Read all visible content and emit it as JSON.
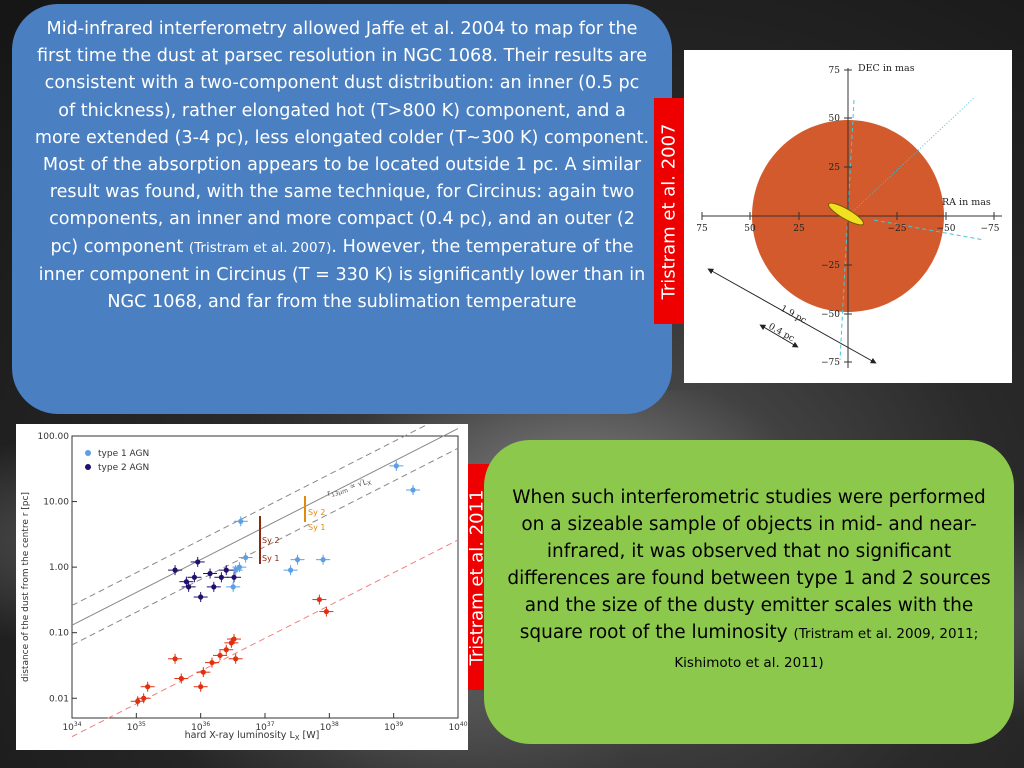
{
  "blue_box": {
    "text": "Mid-infrared interferometry allowed Jaffe et al. 2004 to map for the first time the dust at parsec resolution in NGC 1068. Their results are consistent with a two-component dust distribution: an inner (0.5 pc of thickness), rather elongated hot (T>800 K) component, and a more extended (3-4 pc), less elongated colder (T~300 K) component. Most of the absorption appears to be located outside 1 pc. A similar result was found, with the same technique, for Circinus: again two components, an inner and more compact (0.4 pc), and an outer (2 pc) component",
    "citation": "(Tristram et al. 2007)",
    "text_after": ". However, the temperature of the inner component in Circinus (T = 330 K) is significantly lower than in NGC 1068, and far from the sublimation temperature"
  },
  "green_box": {
    "text": "When such interferometric studies were performed on a sizeable sample of objects in mid- and near-infrared, it was observed that no significant differences are found between type 1 and 2 sources and the size of the dusty emitter scales with the square root of the luminosity",
    "citation": "(Tristram et al. 2009, 2011; Kishimoto et al. 2011)"
  },
  "side_labels": {
    "top": "Tristram et al. 2007",
    "bottom": "Tristram et al. 2011"
  },
  "figure_top": {
    "y_axis_label": "DEC in mas",
    "x_axis_label": "RA in mas",
    "x_ticks": [
      "75",
      "50",
      "25",
      "−25",
      "−50",
      "−75"
    ],
    "y_ticks": [
      "75",
      "50",
      "25",
      "−25",
      "−50",
      "−75"
    ],
    "annotation_outer": "1.9 pc",
    "annotation_inner": "0.4 pc",
    "colors": {
      "disk": "#d25a2c",
      "inner": "#f0e020",
      "guide": "#40c8d8"
    }
  },
  "chart_data": {
    "type": "scatter",
    "xlabel": "hard X-ray luminosity L",
    "xlabel_sub": "X",
    "xlabel_unit": "[W]",
    "ylabel": "distance of the dust from the centre r [pc]",
    "x_log": true,
    "y_log": true,
    "xlim": [
      1e+34,
      1e+40
    ],
    "ylim": [
      0.005,
      100
    ],
    "x_tick_labels": [
      "10",
      "10",
      "10",
      "10",
      "10",
      "10",
      "10"
    ],
    "x_tick_exps": [
      "34",
      "35",
      "36",
      "37",
      "38",
      "39",
      "40"
    ],
    "y_tick_labels": [
      "100.00",
      "10.00",
      "1.00",
      "0.10",
      "0.01"
    ],
    "legend": [
      {
        "name": "type 1 AGN",
        "color": "#5aa0e6"
      },
      {
        "name": "type 2 AGN",
        "color": "#20106e"
      }
    ],
    "legend_position": "top-left",
    "line_label": "r",
    "line_label_sub": "13μm",
    "line_label_rest": "∝ √L",
    "line_label_sub2": "X",
    "bar_labels": [
      "Sy 2",
      "Sy 1",
      "Sy 2",
      "Sy 1"
    ],
    "series": [
      {
        "name": "type 1 AGN",
        "color": "#5aa0e6",
        "points": [
          [
            3.2e+36,
            0.5
          ],
          [
            3.5e+36,
            0.9
          ],
          [
            4e+36,
            1.0
          ],
          [
            4.2e+36,
            5.0
          ],
          [
            5e+36,
            1.4
          ],
          [
            2.5e+37,
            0.9
          ],
          [
            3.2e+37,
            1.3
          ],
          [
            8e+37,
            1.3
          ],
          [
            1.1e+39,
            35
          ],
          [
            2e+39,
            15
          ]
        ]
      },
      {
        "name": "type 2 AGN",
        "color": "#20106e",
        "points": [
          [
            4e+35,
            0.9
          ],
          [
            6e+35,
            0.6
          ],
          [
            6.5e+35,
            0.5
          ],
          [
            8e+35,
            0.7
          ],
          [
            9e+35,
            1.2
          ],
          [
            1e+36,
            0.35
          ],
          [
            1.4e+36,
            0.8
          ],
          [
            1.6e+36,
            0.5
          ],
          [
            2.1e+36,
            0.7
          ],
          [
            2.5e+36,
            0.9
          ],
          [
            3.3e+36,
            0.7
          ]
        ]
      },
      {
        "name": "",
        "color": "#e03010",
        "points": [
          [
            1.05e+35,
            0.009
          ],
          [
            1.3e+35,
            0.01
          ],
          [
            1.5e+35,
            0.015
          ],
          [
            4e+35,
            0.04
          ],
          [
            5e+35,
            0.02
          ],
          [
            1e+36,
            0.015
          ],
          [
            1.1e+36,
            0.025
          ],
          [
            1.5e+36,
            0.035
          ],
          [
            2e+36,
            0.045
          ],
          [
            2.5e+36,
            0.055
          ],
          [
            3e+36,
            0.07
          ],
          [
            3.3e+36,
            0.08
          ],
          [
            3.5e+36,
            0.04
          ],
          [
            7e+37,
            0.32
          ],
          [
            9e+37,
            0.21
          ]
        ]
      }
    ]
  }
}
